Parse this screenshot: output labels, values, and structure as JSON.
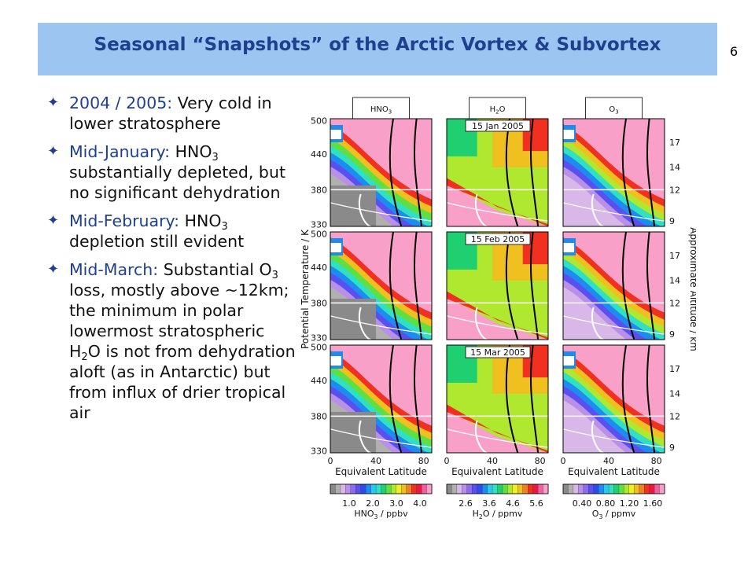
{
  "slide": {
    "title": "Seasonal “Snapshots” of the Arctic Vortex & Subvortex",
    "number": "6"
  },
  "bullets": [
    {
      "lead": "2004 / 2005:",
      "parts": [
        " Very cold in lower stratosphere"
      ]
    },
    {
      "lead": "Mid-January:",
      "parts": [
        " HNO",
        "3",
        " substantially depleted, but no significant dehydration"
      ]
    },
    {
      "lead": "Mid-February:",
      "parts": [
        " HNO",
        "3",
        " depletion still evident"
      ]
    },
    {
      "lead": "Mid-March:",
      "parts": [
        " Substantial O",
        "3",
        " loss, mostly above ~12km; the minimum in polar lowermost stratospheric H",
        "2",
        "O is not from dehydration aloft (as in Antarctic) but from influx of drier tropical air"
      ]
    }
  ],
  "figure": {
    "column_headers": [
      [
        "HNO",
        "3"
      ],
      [
        "H",
        "2",
        "O"
      ],
      [
        "O",
        "3"
      ]
    ],
    "row_dates": [
      "15 Jan 2005",
      "15 Feb 2005",
      "15 Mar 2005"
    ],
    "left_axis_label": "Potential Temperature / K",
    "right_axis_label": "Approximate Altitude / km",
    "theta_ticks": [
      "500",
      "440",
      "380",
      "330"
    ],
    "altitude_ticks": [
      "17",
      "14",
      "12",
      "9"
    ],
    "lat_ticks": [
      "0",
      "40",
      "80"
    ],
    "x_label": "Equivalent Latitude",
    "colorbars": [
      {
        "ticks": [
          "1.0",
          "2.0",
          "3.0",
          "4.0"
        ],
        "label": [
          "HNO",
          "3",
          " / ppbv"
        ]
      },
      {
        "ticks": [
          "2.6",
          "3.6",
          "4.6",
          "5.6"
        ],
        "label": [
          "H",
          "2",
          "O / ppmv"
        ]
      },
      {
        "ticks": [
          "0.40",
          "0.80",
          "1.20",
          "1.60"
        ],
        "label": [
          "O",
          "3",
          " / ppmv"
        ]
      }
    ],
    "colors": {
      "accent": "#1f3f8f",
      "title_bar": "#9cc5f2",
      "scale": [
        "#8a8a8a",
        "#b0b0b0",
        "#d8b8e8",
        "#b890e8",
        "#8c6cf0",
        "#5a50f0",
        "#2d4cf0",
        "#1d8cf0",
        "#2cc8f0",
        "#30e0c0",
        "#20d070",
        "#60e040",
        "#b0e830",
        "#f0f020",
        "#f0c020",
        "#f08020",
        "#f03020",
        "#e81840",
        "#f060a0",
        "#f8a0c8"
      ]
    }
  }
}
